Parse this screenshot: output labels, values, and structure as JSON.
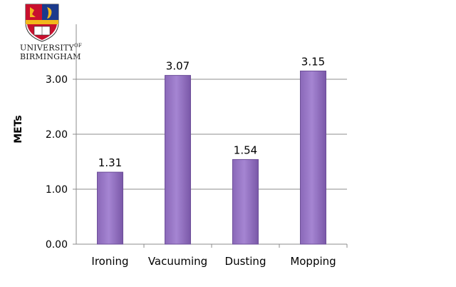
{
  "logo": {
    "name_line1_main": "UNIVERSITY",
    "name_line1_sup": "OF",
    "name_line2": "BIRMINGHAM"
  },
  "colors": {
    "bar_fill": "#9a78c8",
    "bar_stroke": "#6d4f99",
    "grid": "#8c8c8c",
    "shield_red": "#c8102e",
    "shield_gold": "#f2b81c"
  },
  "chart_data": {
    "type": "bar",
    "categories": [
      "Ironing",
      "Vacuuming",
      "Dusting",
      "Mopping"
    ],
    "values": [
      1.31,
      3.07,
      1.54,
      3.15
    ],
    "data_labels": [
      "1.31",
      "3.07",
      "1.54",
      "3.15"
    ],
    "title": "",
    "xlabel": "",
    "ylabel": "METs",
    "ylim": [
      0,
      3.0
    ],
    "yticks": [
      0,
      1,
      2,
      3
    ],
    "ytick_labels": [
      "0.00",
      "1.00",
      "2.00",
      "3.00"
    ],
    "grid": true,
    "legend": "none"
  }
}
